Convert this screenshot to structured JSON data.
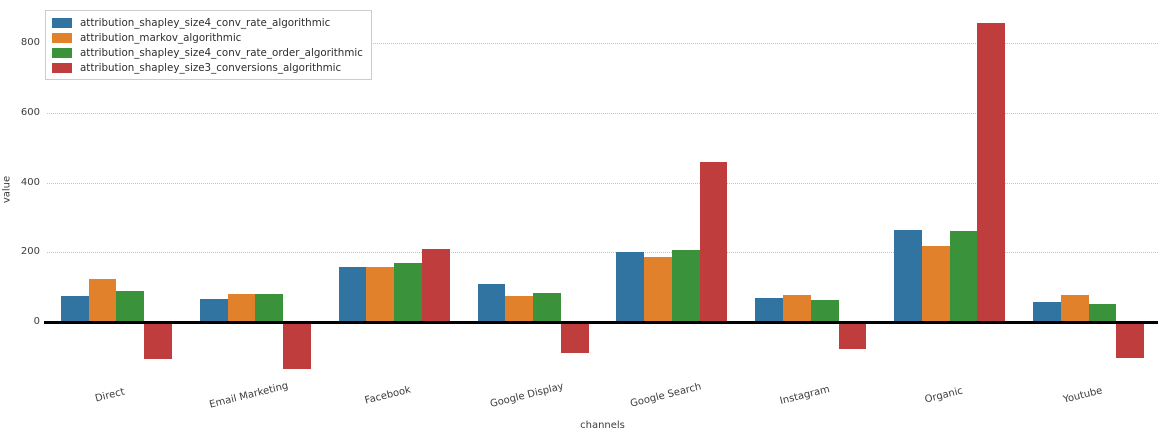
{
  "chart_data": {
    "type": "bar",
    "title": "",
    "xlabel": "channels",
    "ylabel": "value",
    "categories": [
      "Direct",
      "Email Marketing",
      "Facebook",
      "Google Display",
      "Google Search",
      "Instagram",
      "Organic",
      "Youtube"
    ],
    "series": [
      {
        "name": "attribution_shapley_size4_conv_rate_algorithmic",
        "color": "#3274a1",
        "values": [
          75,
          66,
          158,
          110,
          200,
          69,
          264,
          58
        ]
      },
      {
        "name": "attribution_markov_algorithmic",
        "color": "#e1812c",
        "values": [
          124,
          81,
          158,
          76,
          185,
          78,
          218,
          78
        ]
      },
      {
        "name": "attribution_shapley_size4_conv_rate_order_algorithmic",
        "color": "#3a923a",
        "values": [
          90,
          81,
          170,
          84,
          207,
          63,
          261,
          52
        ]
      },
      {
        "name": "attribution_shapley_size3_conversions_algorithmic",
        "color": "#c03d3e",
        "values": [
          -105,
          -134,
          210,
          -90,
          460,
          -78,
          858,
          -104
        ]
      }
    ],
    "yticks": [
      0,
      200,
      400,
      600,
      800
    ],
    "ylim": [
      -160,
      920
    ],
    "grid": "horizontal-dotted",
    "gridline_color": "#c3c3c3",
    "zero_line_color": "#000000",
    "legend_position": "upper-left"
  }
}
